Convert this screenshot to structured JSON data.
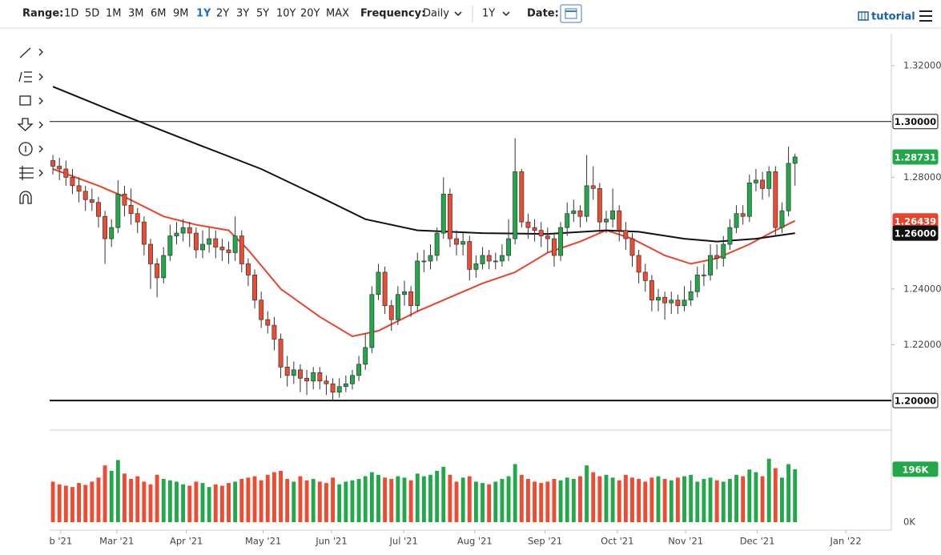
{
  "toolbar": {
    "range_label": "Range:",
    "ranges": [
      "1D",
      "5D",
      "1M",
      "3M",
      "6M",
      "9M",
      "1Y",
      "2Y",
      "3Y",
      "5Y",
      "10Y",
      "20Y",
      "MAX"
    ],
    "active_range": 6,
    "frequency_label": "Frequency:",
    "frequency": "Daily",
    "period": "1Y",
    "date_label": "Date:",
    "tutorial": "tutorial"
  },
  "chart_data": {
    "type": "candlestick",
    "up_color": "#22a84a",
    "down_color": "#ee4b33",
    "xlim": [
      -0.5,
      128.8
    ],
    "xticks": [
      {
        "value": 1.2,
        "label": "b '21"
      },
      {
        "value": 9.8,
        "label": "Mar '21"
      },
      {
        "value": 20.5,
        "label": "Apr '21"
      },
      {
        "value": 32.3,
        "label": "May '21"
      },
      {
        "value": 42.8,
        "label": "Jun '21"
      },
      {
        "value": 53.9,
        "label": "Jul '21"
      },
      {
        "value": 64.8,
        "label": "Aug '21"
      },
      {
        "value": 75.6,
        "label": "Sep '21"
      },
      {
        "value": 86.7,
        "label": "Oct '21"
      },
      {
        "value": 97.2,
        "label": "Nov '21"
      },
      {
        "value": 108.2,
        "label": "Dec '21"
      },
      {
        "value": 121.8,
        "label": "Jan '22"
      }
    ],
    "ylim": [
      1.1943,
      1.3315
    ],
    "yticks": [
      {
        "value": 1.32,
        "label": "1.32000"
      },
      {
        "value": 1.28,
        "label": "1.28000"
      },
      {
        "value": 1.24,
        "label": "1.24000"
      },
      {
        "value": 1.22,
        "label": "1.22000"
      }
    ],
    "ohlc": {
      "open": [
        1.286,
        1.284,
        1.283,
        1.28,
        1.277,
        1.275,
        1.272,
        1.271,
        1.266,
        1.258,
        1.262,
        1.274,
        1.27,
        1.267,
        1.264,
        1.256,
        1.249,
        1.244,
        1.252,
        1.259,
        1.26,
        1.262,
        1.26,
        1.254,
        1.256,
        1.258,
        1.255,
        1.254,
        1.253,
        1.259,
        1.249,
        1.245,
        1.236,
        1.229,
        1.227,
        1.222,
        1.212,
        1.209,
        1.211,
        1.208,
        1.207,
        1.21,
        1.207,
        1.206,
        1.203,
        1.205,
        1.206,
        1.209,
        1.213,
        1.219,
        1.238,
        1.246,
        1.234,
        1.229,
        1.238,
        1.239,
        1.234,
        1.25,
        1.25,
        1.252,
        1.26,
        1.274,
        1.258,
        1.256,
        1.257,
        1.247,
        1.249,
        1.252,
        1.25,
        1.25,
        1.252,
        1.258,
        1.282,
        1.264,
        1.262,
        1.261,
        1.259,
        1.258,
        1.252,
        1.262,
        1.267,
        1.268,
        1.266,
        1.277,
        1.276,
        1.264,
        1.265,
        1.268,
        1.261,
        1.258,
        1.252,
        1.246,
        1.243,
        1.236,
        1.237,
        1.235,
        1.236,
        1.234,
        1.236,
        1.239,
        1.245,
        1.245,
        1.252,
        1.251,
        1.256,
        1.262,
        1.267,
        1.266,
        1.278,
        1.279,
        1.276,
        1.282,
        1.262,
        1.268,
        1.285
      ],
      "high": [
        1.288,
        1.287,
        1.286,
        1.283,
        1.28,
        1.277,
        1.276,
        1.273,
        1.268,
        1.265,
        1.279,
        1.277,
        1.276,
        1.269,
        1.266,
        1.258,
        1.251,
        1.255,
        1.263,
        1.264,
        1.265,
        1.264,
        1.262,
        1.261,
        1.262,
        1.261,
        1.258,
        1.257,
        1.266,
        1.261,
        1.251,
        1.247,
        1.239,
        1.232,
        1.23,
        1.224,
        1.216,
        1.214,
        1.213,
        1.211,
        1.212,
        1.212,
        1.209,
        1.208,
        1.208,
        1.209,
        1.211,
        1.216,
        1.224,
        1.241,
        1.249,
        1.248,
        1.236,
        1.241,
        1.243,
        1.241,
        1.253,
        1.254,
        1.256,
        1.262,
        1.28,
        1.276,
        1.261,
        1.26,
        1.259,
        1.252,
        1.255,
        1.254,
        1.253,
        1.256,
        1.265,
        1.294,
        1.283,
        1.267,
        1.265,
        1.264,
        1.262,
        1.26,
        1.264,
        1.271,
        1.272,
        1.27,
        1.288,
        1.284,
        1.278,
        1.268,
        1.276,
        1.27,
        1.264,
        1.26,
        1.254,
        1.249,
        1.245,
        1.24,
        1.239,
        1.239,
        1.238,
        1.241,
        1.243,
        1.248,
        1.249,
        1.256,
        1.256,
        1.259,
        1.265,
        1.27,
        1.27,
        1.281,
        1.283,
        1.282,
        1.284,
        1.284,
        1.271,
        1.291,
        1.2885
      ],
      "low": [
        1.281,
        1.279,
        1.277,
        1.274,
        1.271,
        1.268,
        1.268,
        1.262,
        1.249,
        1.255,
        1.26,
        1.266,
        1.263,
        1.26,
        1.252,
        1.24,
        1.237,
        1.242,
        1.25,
        1.256,
        1.257,
        1.255,
        1.251,
        1.251,
        1.253,
        1.251,
        1.25,
        1.249,
        1.25,
        1.246,
        1.241,
        1.233,
        1.226,
        1.224,
        1.218,
        1.208,
        1.205,
        1.206,
        1.203,
        1.202,
        1.204,
        1.204,
        1.202,
        1.2,
        1.201,
        1.203,
        1.204,
        1.207,
        1.211,
        1.217,
        1.236,
        1.231,
        1.225,
        1.227,
        1.234,
        1.23,
        1.232,
        1.246,
        1.247,
        1.25,
        1.258,
        1.255,
        1.252,
        1.252,
        1.243,
        1.244,
        1.247,
        1.247,
        1.247,
        1.248,
        1.25,
        1.256,
        1.262,
        1.258,
        1.257,
        1.255,
        1.253,
        1.248,
        1.25,
        1.259,
        1.264,
        1.262,
        1.264,
        1.272,
        1.26,
        1.26,
        1.262,
        1.257,
        1.254,
        1.248,
        1.242,
        1.239,
        1.232,
        1.232,
        1.229,
        1.231,
        1.231,
        1.232,
        1.234,
        1.237,
        1.241,
        1.243,
        1.247,
        1.248,
        1.254,
        1.26,
        1.263,
        1.264,
        1.275,
        1.272,
        1.273,
        1.259,
        1.26,
        1.266,
        1.277
      ],
      "close": [
        1.284,
        1.283,
        1.28,
        1.277,
        1.275,
        1.272,
        1.271,
        1.266,
        1.258,
        1.262,
        1.274,
        1.27,
        1.267,
        1.264,
        1.256,
        1.249,
        1.244,
        1.252,
        1.259,
        1.26,
        1.262,
        1.26,
        1.254,
        1.256,
        1.258,
        1.255,
        1.254,
        1.253,
        1.259,
        1.249,
        1.245,
        1.236,
        1.229,
        1.227,
        1.222,
        1.212,
        1.209,
        1.211,
        1.208,
        1.207,
        1.21,
        1.207,
        1.206,
        1.203,
        1.205,
        1.206,
        1.209,
        1.213,
        1.219,
        1.238,
        1.246,
        1.234,
        1.229,
        1.238,
        1.239,
        1.234,
        1.25,
        1.25,
        1.252,
        1.26,
        1.274,
        1.258,
        1.256,
        1.257,
        1.247,
        1.249,
        1.252,
        1.25,
        1.25,
        1.252,
        1.258,
        1.282,
        1.264,
        1.262,
        1.261,
        1.259,
        1.258,
        1.252,
        1.262,
        1.267,
        1.268,
        1.266,
        1.277,
        1.276,
        1.264,
        1.265,
        1.268,
        1.261,
        1.258,
        1.252,
        1.246,
        1.243,
        1.236,
        1.237,
        1.235,
        1.236,
        1.234,
        1.236,
        1.239,
        1.245,
        1.245,
        1.252,
        1.251,
        1.256,
        1.262,
        1.267,
        1.266,
        1.278,
        1.279,
        1.276,
        1.282,
        1.262,
        1.268,
        1.285,
        1.28731
      ]
    },
    "moving_averages": [
      {
        "color": "#e8432c",
        "x": [
          0,
          7,
          11,
          17,
          22,
          27,
          30,
          35,
          41,
          46,
          50,
          56,
          61,
          66,
          71,
          76,
          81,
          85,
          89,
          94,
          98,
          102,
          107,
          111,
          114
        ],
        "values": [
          1.283,
          1.277,
          1.273,
          1.266,
          1.263,
          1.261,
          1.254,
          1.24,
          1.23,
          1.223,
          1.225,
          1.232,
          1.237,
          1.242,
          1.246,
          1.253,
          1.257,
          1.261,
          1.258,
          1.252,
          1.249,
          1.251,
          1.256,
          1.261,
          1.26439
        ]
      },
      {
        "color": "#111111",
        "x": [
          0,
          10,
          22,
          32,
          41,
          48,
          56,
          66,
          76,
          85,
          90,
          97,
          102,
          108,
          114
        ],
        "values": [
          1.3125,
          1.303,
          1.292,
          1.283,
          1.273,
          1.265,
          1.261,
          1.26,
          1.2597,
          1.261,
          1.2605,
          1.258,
          1.257,
          1.258,
          1.26
        ]
      }
    ],
    "levels": [
      {
        "value": 1.3,
        "label": "1.30000"
      },
      {
        "value": 1.2,
        "label": "1.20000"
      }
    ],
    "badges": [
      {
        "value": 1.28731,
        "label": "1.28731",
        "color": "#22a84a"
      },
      {
        "value": 1.26439,
        "label": "1.26439",
        "color": "#e8432c"
      },
      {
        "value": 1.26,
        "label": "1.26000",
        "color": "#111111"
      }
    ],
    "volume": {
      "ylim": [
        0,
        341
      ],
      "yticks": [
        {
          "value": 0,
          "label": "0K"
        }
      ],
      "badge": {
        "value": 196,
        "label": "196K",
        "color": "#22a84a"
      },
      "values": [
        150,
        140,
        135,
        130,
        145,
        138,
        150,
        165,
        210,
        190,
        230,
        180,
        160,
        170,
        150,
        140,
        175,
        160,
        155,
        150,
        140,
        135,
        150,
        145,
        130,
        140,
        135,
        145,
        150,
        160,
        165,
        170,
        155,
        175,
        185,
        190,
        160,
        150,
        170,
        155,
        160,
        150,
        145,
        165,
        140,
        150,
        155,
        160,
        170,
        185,
        175,
        165,
        160,
        170,
        165,
        155,
        180,
        170,
        175,
        190,
        205,
        175,
        150,
        165,
        170,
        150,
        145,
        140,
        150,
        160,
        170,
        215,
        175,
        160,
        150,
        145,
        150,
        160,
        155,
        165,
        160,
        170,
        210,
        185,
        170,
        175,
        165,
        155,
        175,
        165,
        160,
        150,
        165,
        170,
        160,
        155,
        165,
        170,
        175,
        150,
        160,
        165,
        155,
        150,
        160,
        175,
        170,
        195,
        185,
        170,
        235,
        200,
        165,
        215,
        196
      ]
    }
  }
}
